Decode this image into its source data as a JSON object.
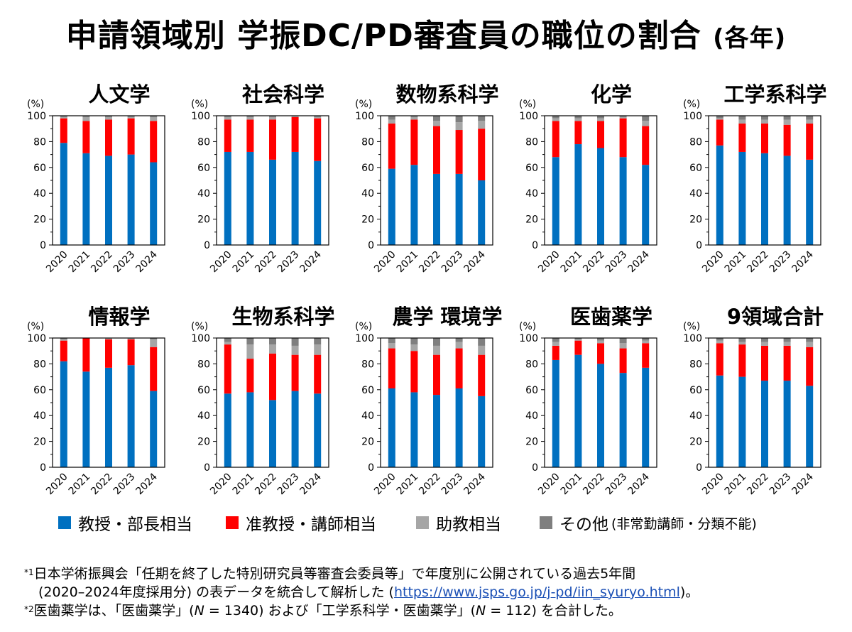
{
  "title": "申請領域別 学振DC/PD審査員の職位の割合",
  "title_suffix": "(各年)",
  "legend": [
    {
      "label": "教授・部長相当",
      "note": "",
      "color": "#0070c0"
    },
    {
      "label": "准教授・講師相当",
      "note": "",
      "color": "#ff0000"
    },
    {
      "label": "助教相当",
      "note": "",
      "color": "#a6a6a6"
    },
    {
      "label": "その他",
      "note": "(非常勤講師・分類不能)",
      "color": "#7f7f7f"
    }
  ],
  "notes": {
    "n1_mark": "*1",
    "n1_line1": "日本学術振興会「任期を終了した特別研究員等審査会委員等」で年度別に公開されている過去5年間",
    "n1_line2_pre": "(2020–2024年度採用分) の表データを統合して解析した (",
    "n1_link": "https://www.jsps.go.jp/j-pd/iin_syuryo.html",
    "n1_line2_post": ")。",
    "n2_mark": "*2",
    "n2_a": "医歯薬学は、「医歯薬学」(",
    "n2_n1": "N",
    "n2_b": " = 1340) および「工学系科学・医歯薬学」(",
    "n2_n2": "N",
    "n2_c": " = 112) を合計した。"
  },
  "chart_data": [
    {
      "type": "bar",
      "stacked": true,
      "title": "人文学",
      "ylabel": "(%)",
      "ylim": [
        0,
        100
      ],
      "yticks": [
        0,
        20,
        40,
        60,
        80,
        100
      ],
      "categories": [
        "2020",
        "2021",
        "2022",
        "2023",
        "2024"
      ],
      "series": [
        {
          "name": "教授・部長相当",
          "values": [
            79,
            71,
            69,
            70,
            64
          ]
        },
        {
          "name": "准教授・講師相当",
          "values": [
            19,
            25,
            28,
            28,
            32
          ]
        },
        {
          "name": "助教相当",
          "values": [
            1,
            3,
            2,
            1,
            3
          ]
        },
        {
          "name": "その他",
          "values": [
            1,
            1,
            1,
            1,
            1
          ]
        }
      ]
    },
    {
      "type": "bar",
      "stacked": true,
      "title": "社会科学",
      "ylabel": "(%)",
      "ylim": [
        0,
        100
      ],
      "yticks": [
        0,
        20,
        40,
        60,
        80,
        100
      ],
      "categories": [
        "2020",
        "2021",
        "2022",
        "2023",
        "2024"
      ],
      "series": [
        {
          "name": "教授・部長相当",
          "values": [
            72,
            72,
            66,
            72,
            65
          ]
        },
        {
          "name": "准教授・講師相当",
          "values": [
            25,
            25,
            31,
            27,
            33
          ]
        },
        {
          "name": "助教相当",
          "values": [
            2,
            2,
            2,
            1,
            1
          ]
        },
        {
          "name": "その他",
          "values": [
            1,
            1,
            1,
            0,
            1
          ]
        }
      ]
    },
    {
      "type": "bar",
      "stacked": true,
      "title": "数物系科学",
      "ylabel": "(%)",
      "ylim": [
        0,
        100
      ],
      "yticks": [
        0,
        20,
        40,
        60,
        80,
        100
      ],
      "categories": [
        "2020",
        "2021",
        "2022",
        "2023",
        "2024"
      ],
      "series": [
        {
          "name": "教授・部長相当",
          "values": [
            59,
            62,
            55,
            55,
            50
          ]
        },
        {
          "name": "准教授・講師相当",
          "values": [
            35,
            35,
            37,
            34,
            40
          ]
        },
        {
          "name": "助教相当",
          "values": [
            3,
            2,
            4,
            6,
            6
          ]
        },
        {
          "name": "その他",
          "values": [
            3,
            1,
            4,
            5,
            4
          ]
        }
      ]
    },
    {
      "type": "bar",
      "stacked": true,
      "title": "化学",
      "ylabel": "(%)",
      "ylim": [
        0,
        100
      ],
      "yticks": [
        0,
        20,
        40,
        60,
        80,
        100
      ],
      "categories": [
        "2020",
        "2021",
        "2022",
        "2023",
        "2024"
      ],
      "series": [
        {
          "name": "教授・部長相当",
          "values": [
            68,
            78,
            75,
            68,
            62
          ]
        },
        {
          "name": "准教授・講師相当",
          "values": [
            28,
            18,
            21,
            30,
            30
          ]
        },
        {
          "name": "助教相当",
          "values": [
            2,
            2,
            2,
            1,
            4
          ]
        },
        {
          "name": "その他",
          "values": [
            2,
            2,
            2,
            1,
            4
          ]
        }
      ]
    },
    {
      "type": "bar",
      "stacked": true,
      "title": "工学系科学",
      "ylabel": "(%)",
      "ylim": [
        0,
        100
      ],
      "yticks": [
        0,
        20,
        40,
        60,
        80,
        100
      ],
      "categories": [
        "2020",
        "2021",
        "2022",
        "2023",
        "2024"
      ],
      "series": [
        {
          "name": "教授・部長相当",
          "values": [
            77,
            72,
            71,
            69,
            66
          ]
        },
        {
          "name": "准教授・講師相当",
          "values": [
            20,
            22,
            23,
            24,
            28
          ]
        },
        {
          "name": "助教相当",
          "values": [
            1,
            3,
            3,
            4,
            3
          ]
        },
        {
          "name": "その他",
          "values": [
            2,
            3,
            3,
            3,
            3
          ]
        }
      ]
    },
    {
      "type": "bar",
      "stacked": true,
      "title": "情報学",
      "ylabel": "(%)",
      "ylim": [
        0,
        100
      ],
      "yticks": [
        0,
        20,
        40,
        60,
        80,
        100
      ],
      "categories": [
        "2020",
        "2021",
        "2022",
        "2023",
        "2024"
      ],
      "series": [
        {
          "name": "教授・部長相当",
          "values": [
            82,
            74,
            77,
            79,
            59
          ]
        },
        {
          "name": "准教授・講師相当",
          "values": [
            16,
            26,
            22,
            20,
            34
          ]
        },
        {
          "name": "助教相当",
          "values": [
            1,
            0,
            1,
            1,
            6
          ]
        },
        {
          "name": "その他",
          "values": [
            1,
            0,
            0,
            0,
            1
          ]
        }
      ]
    },
    {
      "type": "bar",
      "stacked": true,
      "title": "生物系科学",
      "ylabel": "(%)",
      "ylim": [
        0,
        100
      ],
      "yticks": [
        0,
        20,
        40,
        60,
        80,
        100
      ],
      "categories": [
        "2020",
        "2021",
        "2022",
        "2023",
        "2024"
      ],
      "series": [
        {
          "name": "教授・部長相当",
          "values": [
            57,
            58,
            52,
            59,
            57
          ]
        },
        {
          "name": "准教授・講師相当",
          "values": [
            38,
            26,
            36,
            28,
            30
          ]
        },
        {
          "name": "助教相当",
          "values": [
            2,
            11,
            7,
            7,
            8
          ]
        },
        {
          "name": "その他",
          "values": [
            3,
            5,
            5,
            6,
            5
          ]
        }
      ]
    },
    {
      "type": "bar",
      "stacked": true,
      "title": "農学 環境学",
      "ylabel": "(%)",
      "ylim": [
        0,
        100
      ],
      "yticks": [
        0,
        20,
        40,
        60,
        80,
        100
      ],
      "categories": [
        "2020",
        "2021",
        "2022",
        "2023",
        "2024"
      ],
      "series": [
        {
          "name": "教授・部長相当",
          "values": [
            61,
            58,
            56,
            61,
            55
          ]
        },
        {
          "name": "准教授・講師相当",
          "values": [
            31,
            32,
            31,
            31,
            32
          ]
        },
        {
          "name": "助教相当",
          "values": [
            4,
            5,
            7,
            5,
            7
          ]
        },
        {
          "name": "その他",
          "values": [
            4,
            5,
            6,
            3,
            6
          ]
        }
      ]
    },
    {
      "type": "bar",
      "stacked": true,
      "title": "医歯薬学",
      "ylabel": "(%)",
      "ylim": [
        0,
        100
      ],
      "yticks": [
        0,
        20,
        40,
        60,
        80,
        100
      ],
      "categories": [
        "2020",
        "2021",
        "2022",
        "2023",
        "2024"
      ],
      "series": [
        {
          "name": "教授・部長相当",
          "values": [
            83,
            87,
            80,
            73,
            77
          ]
        },
        {
          "name": "准教授・講師相当",
          "values": [
            11,
            11,
            16,
            19,
            19
          ]
        },
        {
          "name": "助教相当",
          "values": [
            3,
            1,
            2,
            4,
            2
          ]
        },
        {
          "name": "その他",
          "values": [
            3,
            1,
            2,
            4,
            2
          ]
        }
      ]
    },
    {
      "type": "bar",
      "stacked": true,
      "title": "9領域合計",
      "ylabel": "(%)",
      "ylim": [
        0,
        100
      ],
      "yticks": [
        0,
        20,
        40,
        60,
        80,
        100
      ],
      "categories": [
        "2020",
        "2021",
        "2022",
        "2023",
        "2024"
      ],
      "series": [
        {
          "name": "教授・部長相当",
          "values": [
            71,
            70,
            67,
            67,
            63
          ]
        },
        {
          "name": "准教授・講師相当",
          "values": [
            25,
            25,
            27,
            27,
            30
          ]
        },
        {
          "name": "助教相当",
          "values": [
            2,
            2,
            3,
            3,
            4
          ]
        },
        {
          "name": "その他",
          "values": [
            2,
            3,
            3,
            3,
            3
          ]
        }
      ]
    }
  ]
}
